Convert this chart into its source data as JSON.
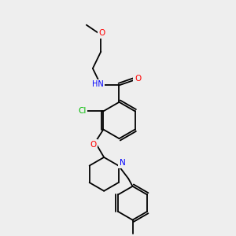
{
  "background_color": "#eeeeee",
  "bond_color": "#000000",
  "atom_colors": {
    "O": "#ff0000",
    "N": "#0000ff",
    "Cl": "#00bb00",
    "C": "#000000",
    "H": "#888888"
  },
  "lw": 1.3,
  "fs": 7.0,
  "figsize": [
    3.0,
    3.0
  ],
  "dpi": 100
}
